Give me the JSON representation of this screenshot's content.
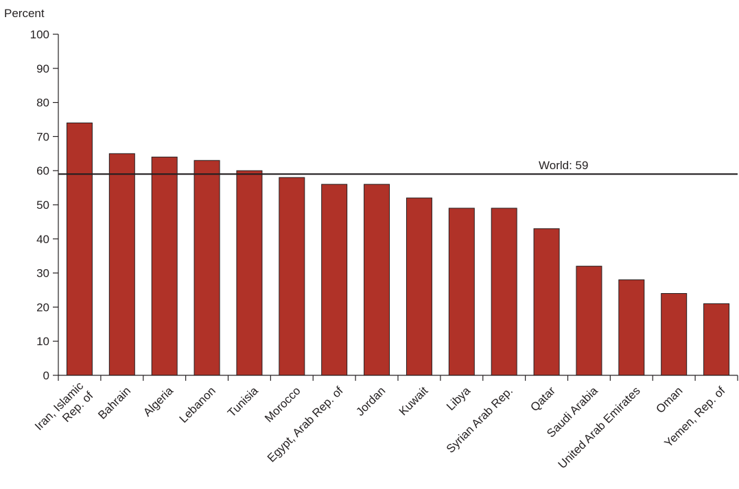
{
  "chart_data": {
    "type": "bar",
    "title": "",
    "xlabel": "",
    "ylabel": "Percent",
    "ylim": [
      0,
      100
    ],
    "yticks": [
      0,
      10,
      20,
      30,
      40,
      50,
      60,
      70,
      80,
      90,
      100
    ],
    "grid": false,
    "categories": [
      [
        "Iran, Islamic",
        "Rep. of"
      ],
      [
        "Bahrain"
      ],
      [
        "Algeria"
      ],
      [
        "Lebanon"
      ],
      [
        "Tunisia"
      ],
      [
        "Morocco"
      ],
      [
        "Egypt, Arab Rep. of"
      ],
      [
        "Jordan"
      ],
      [
        "Kuwait"
      ],
      [
        "Libya"
      ],
      [
        "Syrian Arab Rep."
      ],
      [
        "Qatar"
      ],
      [
        "Saudi Arabia"
      ],
      [
        "United Arab Emirates"
      ],
      [
        "Oman"
      ],
      [
        "Yemen, Rep. of"
      ]
    ],
    "values": [
      74,
      65,
      64,
      63,
      60,
      58,
      56,
      56,
      52,
      49,
      49,
      43,
      32,
      28,
      24,
      21
    ],
    "reference_line": {
      "value": 59,
      "label": "World: 59"
    },
    "bar_color": "#b03228"
  }
}
